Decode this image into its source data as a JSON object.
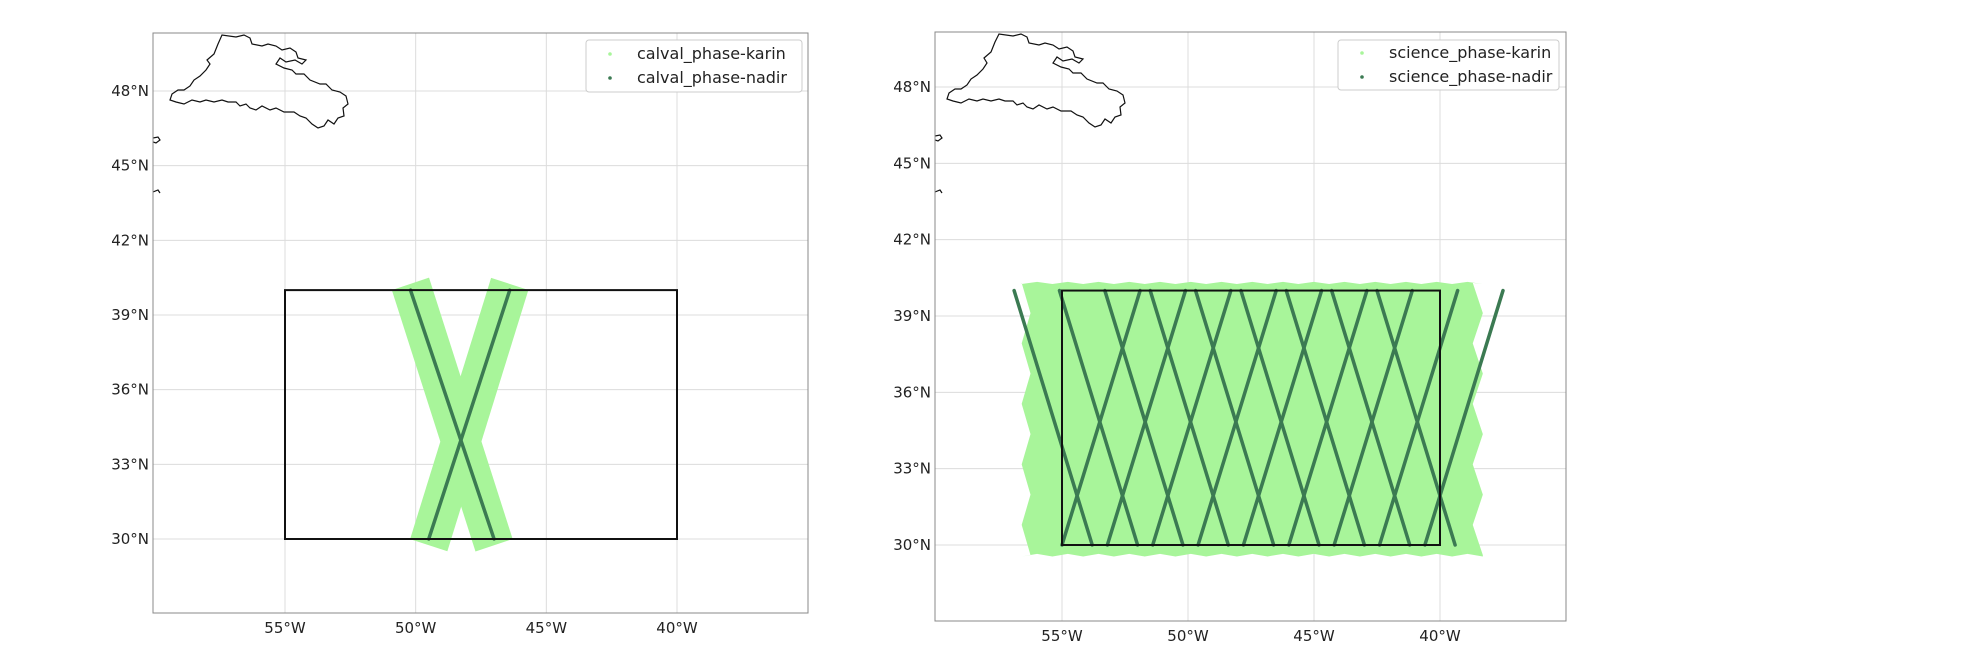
{
  "colors": {
    "karin": "#a8f59a",
    "nadir": "#3b7a52",
    "box": "#111111",
    "grid": "#dcdcdc",
    "frame": "#888888",
    "coast": "#111111"
  },
  "maps": [
    {
      "id": "calval",
      "extent": {
        "lon": [
          -60,
          -35
        ],
        "lat": [
          27,
          40.6
        ]
      },
      "lon_ticks": [
        {
          "v": -55,
          "label": "55°W"
        },
        {
          "v": -50,
          "label": "50°W"
        },
        {
          "v": -45,
          "label": "45°W"
        },
        {
          "v": -40,
          "label": "40°W"
        }
      ],
      "lat_ticks": [
        {
          "v": 30,
          "label": "30°N"
        },
        {
          "v": 33,
          "label": "33°N"
        },
        {
          "v": 36,
          "label": "36°N"
        },
        {
          "v": 39,
          "label": "39°N"
        },
        {
          "v": 42,
          "label": "42°N"
        },
        {
          "v": 45,
          "label": "45°N"
        },
        {
          "v": 48,
          "label": "48°N"
        }
      ],
      "legend": [
        {
          "label": "calval_phase-karin",
          "color_key": "karin"
        },
        {
          "label": "calval_phase-nadir",
          "color_key": "nadir"
        }
      ],
      "box": {
        "lon": [
          -55,
          -40
        ],
        "lat": [
          30,
          40
        ]
      },
      "tracks": [
        {
          "lon0": -49.5,
          "lat0": 30,
          "lon1": -46.4,
          "lat1": 40
        },
        {
          "lon0": -47.0,
          "lat0": 30,
          "lon1": -50.2,
          "lat1": 40
        }
      ],
      "swath_half_width_deg": 0.75
    },
    {
      "id": "science",
      "extent": {
        "lon": [
          -60,
          -35
        ],
        "lat": [
          27,
          40.6
        ]
      },
      "lon_ticks": [
        {
          "v": -55,
          "label": "55°W"
        },
        {
          "v": -50,
          "label": "50°W"
        },
        {
          "v": -45,
          "label": "45°W"
        },
        {
          "v": -40,
          "label": "40°W"
        }
      ],
      "lat_ticks": [
        {
          "v": 30,
          "label": "30°N"
        },
        {
          "v": 33,
          "label": "33°N"
        },
        {
          "v": 36,
          "label": "36°N"
        },
        {
          "v": 39,
          "label": "39°N"
        },
        {
          "v": 42,
          "label": "42°N"
        },
        {
          "v": 45,
          "label": "45°N"
        },
        {
          "v": 48,
          "label": "48°N"
        }
      ],
      "legend": [
        {
          "label": "science_phase-karin",
          "color_key": "karin"
        },
        {
          "label": "science_phase-nadir",
          "color_key": "nadir"
        }
      ],
      "box": {
        "lon": [
          -55,
          -40
        ],
        "lat": [
          30,
          40
        ]
      },
      "swath_fill": {
        "lon": [
          -56.6,
          -38.3
        ],
        "lat": [
          29.6,
          40.3
        ]
      },
      "ascending_start_lons": [
        -55,
        -53.2,
        -51.4,
        -49.6,
        -47.8,
        -46,
        -44.2,
        -42.4,
        -40.6
      ],
      "descending_start_lons": [
        -53.8,
        -52,
        -50.2,
        -48.4,
        -46.6,
        -44.8,
        -43,
        -41.2,
        -39.4
      ],
      "track_dlon": 3.1
    }
  ]
}
